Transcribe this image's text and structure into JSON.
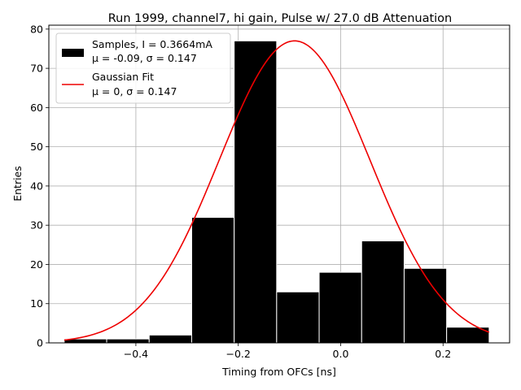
{
  "chart_data": {
    "type": "bar",
    "title": "Run 1999, channel7, hi gain, Pulse w/ 27.0 dB Attenuation",
    "xlabel": "Timing from OFCs [ns]",
    "ylabel": "Entries",
    "xlim": [
      -0.57,
      0.33
    ],
    "ylim": [
      0,
      81
    ],
    "grid": true,
    "xticks": [
      -0.4,
      -0.2,
      0.0,
      0.2
    ],
    "xtick_labels": [
      "−0.4",
      "−0.2",
      "0.0",
      "0.2"
    ],
    "yticks": [
      0,
      10,
      20,
      30,
      40,
      50,
      60,
      70,
      80
    ],
    "ytick_labels": [
      "0",
      "10",
      "20",
      "30",
      "40",
      "50",
      "60",
      "70",
      "80"
    ],
    "histogram": {
      "name": "Samples",
      "bin_edges": [
        -0.54,
        -0.457,
        -0.374,
        -0.291,
        -0.208,
        -0.125,
        -0.042,
        0.041,
        0.124,
        0.207,
        0.29
      ],
      "counts": [
        1,
        1,
        2,
        32,
        77,
        13,
        18,
        26,
        19,
        4
      ],
      "color": "#000000",
      "edge_color": "#ffffff"
    },
    "fit": {
      "name": "Gaussian Fit",
      "type": "line",
      "mu": -0.09,
      "sigma": 0.147,
      "amplitude": 77,
      "x_range": [
        -0.54,
        0.29
      ],
      "color": "#ee0000"
    },
    "legend": {
      "position": "top-left",
      "entries": [
        {
          "kind": "bar",
          "line1": "Samples, I = 0.3664mA",
          "line2": "μ = -0.09, σ = 0.147"
        },
        {
          "kind": "line",
          "line1": "Gaussian Fit",
          "line2": "μ = 0, σ = 0.147"
        }
      ]
    }
  }
}
